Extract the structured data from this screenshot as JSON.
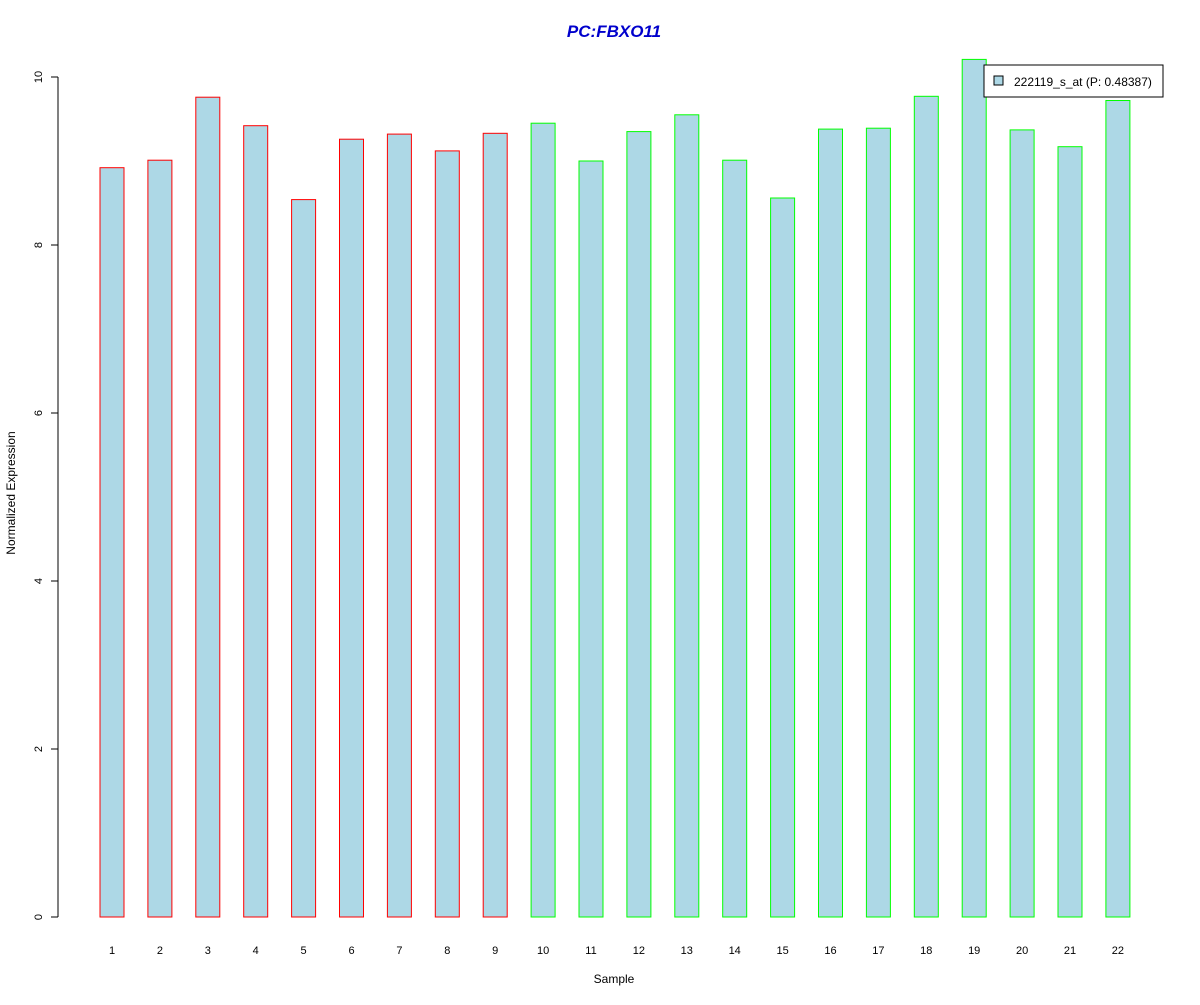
{
  "chart_data": {
    "type": "bar",
    "title": "PC:FBXO11",
    "xlabel": "Sample",
    "ylabel": "Normalized Expression",
    "categories": [
      "1",
      "2",
      "3",
      "4",
      "5",
      "6",
      "7",
      "8",
      "9",
      "10",
      "11",
      "12",
      "13",
      "14",
      "15",
      "16",
      "17",
      "18",
      "19",
      "20",
      "21",
      "22"
    ],
    "series": [
      {
        "name": "222119_s_at (P: 0.48387)",
        "values": [
          8.92,
          9.01,
          9.76,
          9.42,
          8.54,
          9.26,
          9.32,
          9.12,
          9.33,
          9.45,
          9.0,
          9.35,
          9.55,
          9.01,
          8.56,
          9.38,
          9.39,
          9.77,
          10.21,
          9.37,
          9.17,
          9.72
        ],
        "fill": "#add8e6",
        "group": [
          "red",
          "red",
          "red",
          "red",
          "red",
          "red",
          "red",
          "red",
          "red",
          "green",
          "green",
          "green",
          "green",
          "green",
          "green",
          "green",
          "green",
          "green",
          "green",
          "green",
          "green",
          "green"
        ]
      }
    ],
    "ylim": [
      0,
      10
    ],
    "yticks": [
      0,
      2,
      4,
      6,
      8,
      10
    ],
    "grid": false,
    "legend_position": "top-right",
    "colors": {
      "title": "#0000cc",
      "bar_fill": "#add8e6",
      "border_group1": "#ff0000",
      "border_group2": "#00ff00",
      "axis": "#000000"
    }
  }
}
